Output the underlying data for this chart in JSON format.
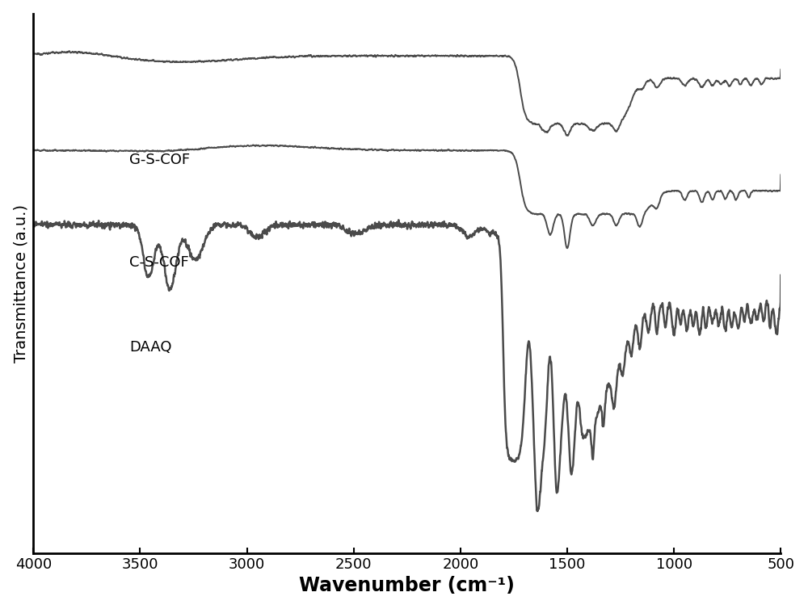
{
  "xlabel": "Wavenumber (cm⁻¹)",
  "ylabel": "Transmittance (a.u.)",
  "line_color": "#4a4a4a",
  "background_color": "#ffffff",
  "labels": [
    "G-S-COF",
    "C-S-COF",
    "DAAQ"
  ],
  "xticks": [
    4000,
    3500,
    3000,
    2500,
    2000,
    1500,
    1000,
    500
  ]
}
